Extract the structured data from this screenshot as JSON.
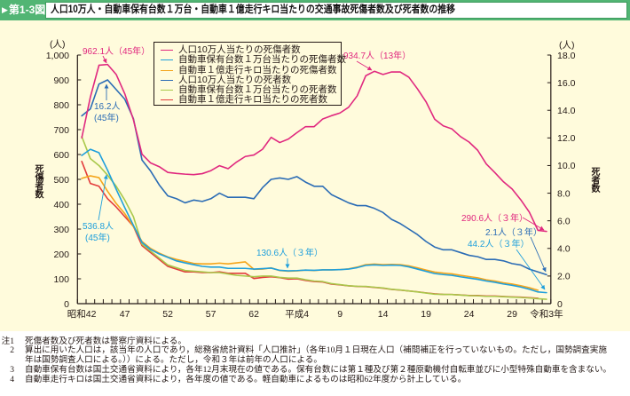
{
  "header": {
    "figure_icon": "triangle-right-icon",
    "figure_number": "第1-3図",
    "title": "人口10万人・自動車保有台数１万台・自動車１億走行キロ当たりの交通事故死傷者数及び死者数の推移"
  },
  "chart_data": {
    "type": "line",
    "title": "人口10万人・自動車保有台数１万台・自動車１億走行キロ当たりの交通事故死傷者数及び死者数の推移",
    "x": [
      "昭和42",
      "昭和43",
      "昭和44",
      "昭和45",
      "昭和46",
      "昭和47",
      "昭和48",
      "昭和49",
      "昭和50",
      "昭和51",
      "昭和52",
      "昭和53",
      "昭和54",
      "昭和55",
      "昭和56",
      "昭和57",
      "昭和58",
      "昭和59",
      "昭和60",
      "昭和61",
      "昭和62",
      "昭和63",
      "平成元",
      "平成2",
      "平成3",
      "平成4",
      "平成5",
      "平成6",
      "平成7",
      "平成8",
      "平成9",
      "平成10",
      "平成11",
      "平成12",
      "平成13",
      "平成14",
      "平成15",
      "平成16",
      "平成17",
      "平成18",
      "平成19",
      "平成20",
      "平成21",
      "平成22",
      "平成23",
      "平成24",
      "平成25",
      "平成26",
      "平成27",
      "平成28",
      "平成29",
      "平成30",
      "令和元",
      "令和2",
      "令和3"
    ],
    "x_tick_labels": [
      {
        "index": 0,
        "label": "昭和42"
      },
      {
        "index": 5,
        "label": "47"
      },
      {
        "index": 10,
        "label": "52"
      },
      {
        "index": 15,
        "label": "57"
      },
      {
        "index": 20,
        "label": "62"
      },
      {
        "index": 25,
        "label": "平成4"
      },
      {
        "index": 30,
        "label": "9"
      },
      {
        "index": 35,
        "label": "14"
      },
      {
        "index": 40,
        "label": "19"
      },
      {
        "index": 45,
        "label": "24"
      },
      {
        "index": 50,
        "label": "29"
      },
      {
        "index": 54,
        "label": "令和3年"
      }
    ],
    "xlabel": "",
    "y_left": {
      "label": "死傷者数",
      "unit": "(人)",
      "min": 0,
      "max": 1000,
      "ticks": [
        0,
        100,
        200,
        300,
        400,
        500,
        600,
        700,
        800,
        900,
        1000
      ],
      "tick_labels": [
        "0",
        "100",
        "200",
        "300",
        "400",
        "500",
        "600",
        "700",
        "800",
        "900",
        "1,000"
      ]
    },
    "y_right": {
      "label": "死者数",
      "unit": "(人)",
      "min": 0,
      "max": 18,
      "ticks": [
        0,
        2,
        4,
        6,
        8,
        10,
        12,
        14,
        16,
        18
      ],
      "tick_labels": [
        "0",
        "2.0",
        "4.0",
        "6.0",
        "8.0",
        "10.0",
        "12.0",
        "14.0",
        "16.0",
        "18.0"
      ]
    },
    "grid": false,
    "legend": {
      "position": "top-left"
    },
    "series": [
      {
        "name": "人口10万人当たりの死傷者数",
        "axis": "left",
        "color": "#e0287f",
        "values": [
          667,
          831,
          959,
          962.1,
          922,
          844,
          740,
          601,
          566,
          551,
          528,
          524,
          521,
          519,
          523,
          535,
          555,
          543,
          570,
          592,
          598,
          621,
          669,
          648,
          662,
          688,
          712,
          712,
          743,
          756,
          767,
          790,
          836,
          917,
          934.7,
          922,
          932,
          932,
          911,
          864,
          812,
          742,
          715,
          703,
          672,
          650,
          617,
          562,
          527,
          490,
          461,
          418,
          368,
          295,
          290.6
        ]
      },
      {
        "name": "自動車保有台数１万台当たりの死傷者数",
        "axis": "left",
        "color": "#1e9fdc",
        "values": [
          596,
          621,
          607,
          536.8,
          460,
          386,
          315,
          246,
          218,
          200,
          186,
          172,
          164,
          157,
          150,
          147,
          147,
          142,
          142,
          142,
          139,
          141,
          143,
          134,
          132,
          133,
          135,
          134,
          136,
          136,
          137,
          139,
          145,
          154,
          156,
          154,
          155,
          154,
          148,
          139,
          130,
          121,
          117,
          114,
          108,
          103,
          98,
          91,
          86,
          79,
          74,
          67,
          58,
          47,
          44.2
        ]
      },
      {
        "name": "自動車１億走行キロ当たりの死傷者数",
        "axis": "left",
        "color": "#f4a51c",
        "values": [
          504,
          514,
          507,
          452,
          403,
          362,
          310,
          250,
          222,
          203,
          188,
          178,
          170,
          162,
          160,
          160,
          163,
          160,
          164,
          168,
          138,
          139,
          144,
          133,
          130.6,
          132,
          135,
          133,
          136,
          136,
          137,
          140,
          147,
          157,
          159,
          157,
          158,
          157,
          152,
          144,
          135,
          127,
          123,
          120,
          114,
          109,
          104,
          96,
          91,
          84,
          79,
          72,
          64,
          54,
          null
        ]
      },
      {
        "name": "人口10万人当たりの死者数",
        "axis": "right",
        "color": "#2b6cb5",
        "values": [
          13.6,
          14.1,
          15.9,
          16.2,
          15.5,
          14.8,
          13.4,
          10.4,
          9.6,
          8.6,
          7.8,
          7.6,
          7.3,
          7.5,
          7.4,
          7.6,
          8.0,
          7.7,
          7.7,
          7.7,
          7.6,
          8.4,
          9.0,
          9.1,
          9.0,
          9.2,
          8.8,
          8.5,
          8.5,
          7.9,
          7.6,
          7.3,
          7.1,
          7.1,
          6.9,
          6.6,
          6.1,
          5.8,
          5.4,
          5.0,
          4.5,
          4.1,
          3.9,
          3.9,
          3.7,
          3.5,
          3.4,
          3.2,
          3.2,
          3.1,
          2.9,
          2.8,
          2.5,
          2.3,
          2.1
        ]
      },
      {
        "name": "自動車保有台数１万台当たりの死者数",
        "axis": "right",
        "color": "#a9c84b",
        "values": [
          12.1,
          10.5,
          10.0,
          9.3,
          8.5,
          7.5,
          6.3,
          4.3,
          3.8,
          3.3,
          2.8,
          2.6,
          2.4,
          2.35,
          2.3,
          2.25,
          2.25,
          2.15,
          2.05,
          2.0,
          1.95,
          2.0,
          2.0,
          1.9,
          1.85,
          1.85,
          1.73,
          1.64,
          1.6,
          1.45,
          1.38,
          1.3,
          1.26,
          1.25,
          1.19,
          1.14,
          1.04,
          0.99,
          0.92,
          0.85,
          0.77,
          0.69,
          0.67,
          0.66,
          0.62,
          0.58,
          0.57,
          0.53,
          0.53,
          0.5,
          0.47,
          0.45,
          0.41,
          0.36,
          0.32
        ]
      },
      {
        "name": "自動車１億走行キロ当たりの死者数",
        "axis": "right",
        "color": "#e33b3b",
        "values": [
          10.3,
          8.7,
          8.5,
          7.6,
          7.0,
          6.3,
          5.6,
          4.2,
          3.7,
          3.2,
          2.7,
          2.5,
          2.3,
          2.3,
          2.25,
          2.25,
          2.3,
          2.2,
          2.2,
          2.2,
          1.82,
          1.9,
          1.95,
          1.88,
          1.78,
          1.8,
          1.68,
          1.6,
          1.57,
          1.42,
          1.36,
          1.29,
          1.25,
          1.23,
          1.18,
          1.12,
          1.03,
          0.98,
          0.92,
          0.86,
          0.78,
          0.71,
          0.67,
          0.66,
          0.63,
          0.59,
          0.59,
          0.55,
          0.55,
          0.52,
          0.49,
          0.47,
          0.43,
          0.39,
          null
        ]
      }
    ],
    "annotations": [
      {
        "lines": [
          "962.1人（45年）"
        ],
        "color": "#e0287f",
        "x": "昭和45",
        "value": 962.1
      },
      {
        "lines": [
          "16.2人",
          "(45年)"
        ],
        "color": "#2b6cb5",
        "x": "昭和45",
        "value": 16.2
      },
      {
        "lines": [
          "536.8人",
          "(45年)"
        ],
        "color": "#1e9fdc",
        "x": "昭和45",
        "value": 536.8
      },
      {
        "lines": [
          "934.7人（13年）"
        ],
        "color": "#e0287f",
        "x": "平成13",
        "value": 934.7
      },
      {
        "lines": [
          "130.6人（３年）"
        ],
        "color": "#1e9fdc",
        "x": "平成3",
        "value": 130.6
      },
      {
        "lines": [
          "290.6人（３年）"
        ],
        "color": "#e0287f",
        "x": "令和3",
        "value": 290.6
      },
      {
        "lines": [
          "2.1人（３年）"
        ],
        "color": "#2b6cb5",
        "x": "令和3",
        "value": 2.1
      },
      {
        "lines": [
          "44.2人（３年）"
        ],
        "color": "#1e9fdc",
        "x": "令和3",
        "value": 44.2
      }
    ]
  },
  "notes": [
    {
      "label": "注1",
      "lines": [
        "死傷者数及び死者数は警察庁資料による。"
      ]
    },
    {
      "label": "2",
      "lines": [
        "算出に用いた人口は，該当年の人口であり，総務省統計資料「人口推計」（各年10月１日現在人口（補間補正を行っていないもの。ただし，国勢調査実施",
        "年は国勢調査人口による。））による。ただし，令和３年は前年の人口による。"
      ]
    },
    {
      "label": "3",
      "lines": [
        "自動車保有台数は国土交通省資料により，各年12月末現在の値である。保有台数には第１種及び第２種原動機付自転車並びに小型特殊自動車を含まない。"
      ]
    },
    {
      "label": "4",
      "lines": [
        "自動車走行キロは国土交通省資料により，各年度の値である。軽自動車によるものは昭和62年度から計上している。"
      ]
    }
  ]
}
